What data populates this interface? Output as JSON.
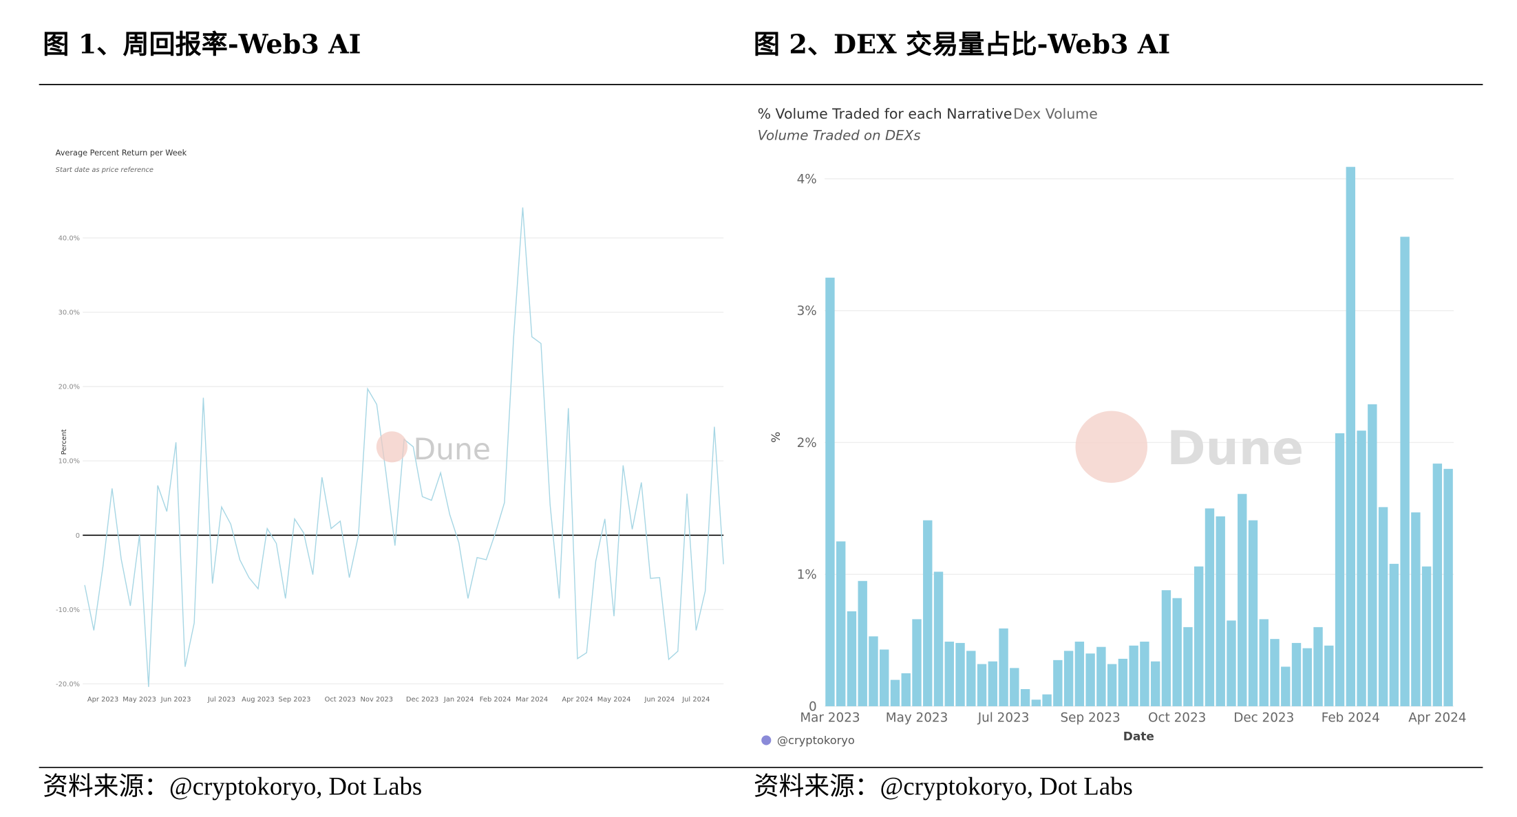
{
  "figures": [
    {
      "caption": "图 1、周回报率-Web3 AI",
      "source": "资料来源：@cryptokoryo, Dot Labs"
    },
    {
      "caption": "图 2、DEX 交易量占比-Web3 AI",
      "source": "资料来源：@cryptokoryo, Dot Labs"
    }
  ],
  "chart_data": [
    {
      "type": "line",
      "title": "Average Percent Return per Week",
      "subtitle": "Start date as price reference",
      "y_label": "Percent",
      "watermark": "Dune",
      "color": "#a6d6e4",
      "grid": true,
      "categories": [
        null,
        null,
        "Apr 2023",
        null,
        null,
        null,
        "May 2023",
        null,
        null,
        null,
        "Jun 2023",
        null,
        null,
        null,
        null,
        "Jul 2023",
        null,
        null,
        null,
        "Aug 2023",
        null,
        null,
        null,
        "Sep 2023",
        null,
        null,
        null,
        null,
        "Oct 2023",
        null,
        null,
        null,
        "Nov 2023",
        null,
        null,
        null,
        null,
        "Dec 2023",
        null,
        null,
        null,
        "Jan 2024",
        null,
        null,
        null,
        "Feb 2024",
        null,
        null,
        null,
        "Mar 2024",
        null,
        null,
        null,
        null,
        "Apr 2024",
        null,
        null,
        null,
        "May 2024",
        null,
        null,
        null,
        null,
        "Jun 2024",
        null,
        null,
        null,
        "Jul 2024",
        null,
        null,
        null
      ],
      "values": [
        -6.7,
        -12.8,
        -4.2,
        6.3,
        -3.2,
        -9.5,
        0,
        -20.4,
        6.7,
        3.2,
        12.5,
        -17.7,
        -11.8,
        18.5,
        -6.5,
        3.8,
        1.5,
        -3.3,
        -5.7,
        -7.2,
        0.9,
        -1.1,
        -8.5,
        2.2,
        0.3,
        -5.3,
        7.8,
        0.9,
        1.9,
        -5.7,
        0,
        19.7,
        17.6,
        8.5,
        -1.4,
        12.9,
        11.9,
        5.2,
        4.7,
        8.4,
        2.8,
        -1.0,
        -8.5,
        -3.0,
        -3.3,
        0.3,
        4.4,
        26.6,
        44.1,
        26.7,
        25.8,
        4.1,
        -8.5,
        17.1,
        -16.6,
        -15.8,
        -3.5,
        2.2,
        -10.9,
        9.4,
        0.8,
        7.1,
        -5.8,
        -5.7,
        -16.7,
        -15.6,
        5.6,
        -12.8,
        -7.5,
        14.6,
        -3.9
      ],
      "ylim": [
        -20,
        46
      ],
      "yticks": [
        {
          "value": -20,
          "label": "-20.0%"
        },
        {
          "value": -10,
          "label": "-10.0%"
        },
        0,
        {
          "value": 10,
          "label": "10.0%"
        },
        {
          "value": 20,
          "label": "20.0%"
        },
        {
          "value": 30,
          "label": "30.0%"
        },
        {
          "value": 40,
          "label": "40.0%"
        }
      ]
    },
    {
      "type": "bar",
      "title": "% Volume Traded for each Narrative",
      "tab": "Dex Volume",
      "subtitle": "Volume Traded on DEXs",
      "y_label": "%",
      "x_label": "Date",
      "credit": "@cryptokoryo",
      "watermark": "Dune",
      "color": "#8ecfe3",
      "grid": true,
      "categories": [
        "Mar 2023",
        null,
        null,
        null,
        null,
        null,
        null,
        null,
        "May 2023",
        null,
        null,
        null,
        null,
        null,
        null,
        null,
        "Jul 2023",
        null,
        null,
        null,
        null,
        null,
        null,
        null,
        "Sep 2023",
        null,
        null,
        null,
        null,
        null,
        null,
        null,
        "Oct 2023",
        null,
        null,
        null,
        null,
        null,
        null,
        null,
        "Dec 2023",
        null,
        null,
        null,
        null,
        null,
        null,
        null,
        "Feb 2024",
        null,
        null,
        null,
        null,
        null,
        null,
        null,
        "Apr 2024",
        null
      ],
      "values": [
        3.25,
        1.25,
        0.72,
        0.95,
        0.53,
        0.43,
        0.2,
        0.25,
        0.66,
        1.41,
        1.02,
        0.49,
        0.48,
        0.42,
        0.32,
        0.34,
        0.59,
        0.29,
        0.13,
        0.05,
        0.09,
        0.35,
        0.42,
        0.49,
        0.4,
        0.45,
        0.32,
        0.36,
        0.46,
        0.49,
        0.34,
        0.88,
        0.82,
        0.6,
        1.06,
        1.5,
        1.44,
        0.65,
        1.61,
        1.41,
        0.66,
        0.51,
        0.3,
        0.48,
        0.44,
        0.6,
        0.46,
        2.07,
        4.09,
        2.09,
        2.29,
        1.51,
        1.08,
        3.56,
        1.47,
        1.06,
        1.84,
        1.8
      ],
      "ylim": [
        0,
        4
      ],
      "yticks": [
        0,
        {
          "value": 1,
          "label": "1%"
        },
        {
          "value": 2,
          "label": "2%"
        },
        {
          "value": 3,
          "label": "3%"
        },
        {
          "value": 4,
          "label": "4%"
        }
      ]
    }
  ]
}
